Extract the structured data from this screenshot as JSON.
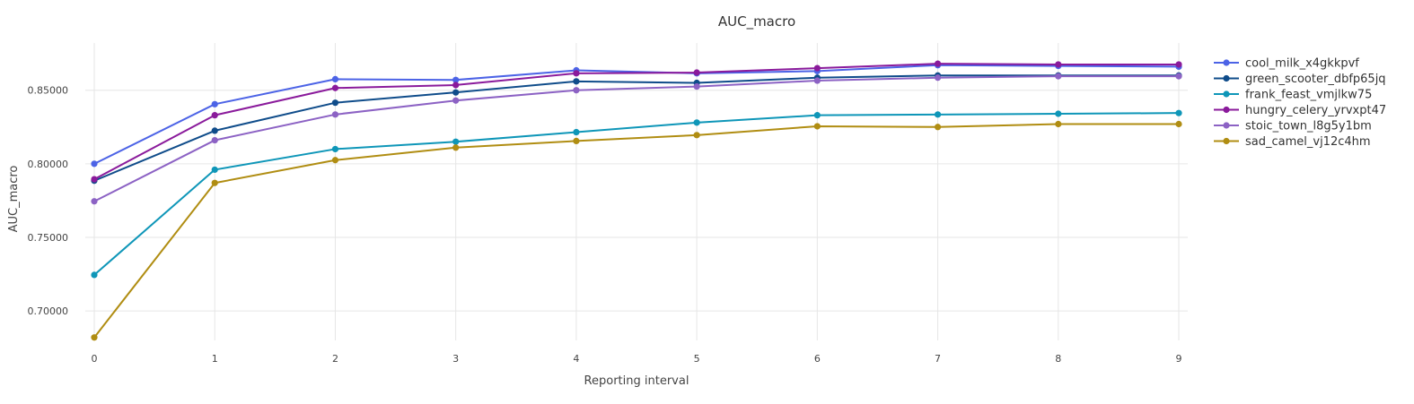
{
  "chart_data": {
    "type": "line",
    "title": "AUC_macro",
    "xlabel": "Reporting interval",
    "ylabel": "AUC_macro",
    "x": [
      0,
      1,
      2,
      3,
      4,
      5,
      6,
      7,
      8,
      9
    ],
    "x_tick_labels": [
      "0",
      "1",
      "2",
      "3",
      "4",
      "5",
      "6",
      "7",
      "8",
      "9"
    ],
    "y_ticks": [
      0.7,
      0.75,
      0.8,
      0.85
    ],
    "y_tick_labels": [
      "0.70000",
      "0.75000",
      "0.80000",
      "0.85000"
    ],
    "xlim": [
      0,
      9
    ],
    "ylim": [
      0.68,
      0.876
    ],
    "grid": true,
    "legend_position": "top-right",
    "series": [
      {
        "name": "cool_milk_x4gkkpvf",
        "color": "#4c63e6",
        "values": [
          0.8,
          0.8405,
          0.8575,
          0.857,
          0.8635,
          0.8615,
          0.863,
          0.867,
          0.8665,
          0.866
        ]
      },
      {
        "name": "green_scooter_dbfp65jq",
        "color": "#0f4c8a",
        "values": [
          0.7885,
          0.8225,
          0.8415,
          0.8485,
          0.856,
          0.855,
          0.8585,
          0.86,
          0.86,
          0.86
        ]
      },
      {
        "name": "frank_feast_vmjlkw75",
        "color": "#0e96b8",
        "values": [
          0.7245,
          0.796,
          0.81,
          0.815,
          0.8215,
          0.828,
          0.833,
          0.8335,
          0.834,
          0.8345
        ]
      },
      {
        "name": "hungry_celery_yrvxpt47",
        "color": "#8a1a9b",
        "values": [
          0.7895,
          0.833,
          0.8515,
          0.8535,
          0.8615,
          0.862,
          0.865,
          0.868,
          0.8675,
          0.8675
        ]
      },
      {
        "name": "stoic_town_l8g5y1bm",
        "color": "#8c62c4",
        "values": [
          0.7745,
          0.816,
          0.8335,
          0.843,
          0.85,
          0.8525,
          0.8565,
          0.8585,
          0.8595,
          0.8595
        ]
      },
      {
        "name": "sad_camel_vj12c4hm",
        "color": "#b08d12",
        "values": [
          0.682,
          0.787,
          0.8025,
          0.811,
          0.8155,
          0.8195,
          0.8255,
          0.825,
          0.827,
          0.827
        ]
      }
    ]
  }
}
